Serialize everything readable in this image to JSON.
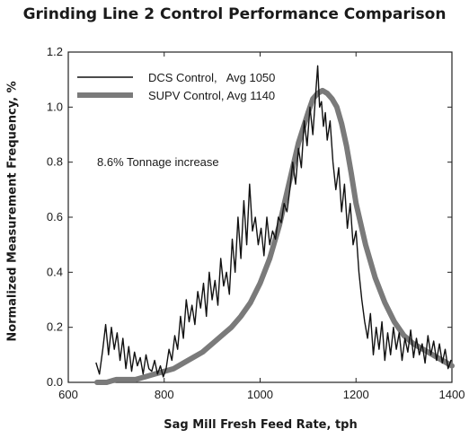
{
  "chart_data": {
    "type": "line",
    "title": "Grinding Line 2 Control Performance Comparison",
    "xlabel": "Sag Mill Fresh Feed Rate, tph",
    "ylabel": "Normalized Measurement Frequency, %",
    "xlim": [
      600,
      1400
    ],
    "ylim": [
      0,
      1.2
    ],
    "x_ticks": [
      "600",
      "800",
      "1000",
      "1200",
      "1400"
    ],
    "y_ticks": [
      "0.0",
      "0.2",
      "0.4",
      "0.6",
      "0.8",
      "1.0",
      "1.2"
    ],
    "grid": false,
    "legend_position": "top-left",
    "annotation": "8.6% Tonnage increase",
    "series": [
      {
        "name": "DCS Control,   Avg 1050",
        "color": "#111111",
        "style": "thin",
        "x": [
          658,
          665,
          672,
          678,
          684,
          690,
          696,
          702,
          708,
          714,
          720,
          726,
          732,
          738,
          744,
          750,
          756,
          762,
          768,
          774,
          780,
          786,
          792,
          798,
          804,
          810,
          816,
          822,
          828,
          834,
          840,
          846,
          852,
          858,
          864,
          870,
          876,
          882,
          888,
          894,
          900,
          906,
          912,
          918,
          924,
          930,
          936,
          942,
          948,
          954,
          960,
          966,
          972,
          978,
          984,
          990,
          996,
          1002,
          1008,
          1014,
          1020,
          1026,
          1032,
          1038,
          1044,
          1050,
          1056,
          1062,
          1068,
          1074,
          1080,
          1086,
          1092,
          1098,
          1104,
          1110,
          1116,
          1120,
          1124,
          1128,
          1132,
          1136,
          1140,
          1146,
          1152,
          1158,
          1164,
          1170,
          1176,
          1182,
          1188,
          1194,
          1200,
          1206,
          1212,
          1218,
          1224,
          1230,
          1236,
          1242,
          1248,
          1254,
          1260,
          1266,
          1272,
          1278,
          1284,
          1290,
          1296,
          1302,
          1308,
          1314,
          1320,
          1326,
          1332,
          1338,
          1344,
          1350,
          1356,
          1362,
          1368,
          1374,
          1380,
          1386,
          1392,
          1398
        ],
        "y": [
          0.07,
          0.03,
          0.12,
          0.21,
          0.1,
          0.2,
          0.12,
          0.18,
          0.08,
          0.16,
          0.05,
          0.13,
          0.04,
          0.11,
          0.06,
          0.09,
          0.03,
          0.1,
          0.05,
          0.04,
          0.08,
          0.03,
          0.06,
          0.02,
          0.05,
          0.12,
          0.08,
          0.17,
          0.12,
          0.24,
          0.16,
          0.3,
          0.22,
          0.28,
          0.21,
          0.33,
          0.27,
          0.36,
          0.24,
          0.4,
          0.3,
          0.37,
          0.28,
          0.45,
          0.35,
          0.4,
          0.32,
          0.52,
          0.4,
          0.6,
          0.45,
          0.66,
          0.5,
          0.72,
          0.55,
          0.6,
          0.5,
          0.56,
          0.46,
          0.6,
          0.5,
          0.55,
          0.52,
          0.6,
          0.58,
          0.65,
          0.62,
          0.7,
          0.8,
          0.72,
          0.85,
          0.78,
          0.95,
          0.86,
          1.0,
          0.9,
          1.05,
          1.15,
          1.0,
          1.02,
          0.93,
          0.98,
          0.88,
          0.95,
          0.8,
          0.7,
          0.78,
          0.62,
          0.72,
          0.56,
          0.65,
          0.5,
          0.55,
          0.4,
          0.3,
          0.22,
          0.16,
          0.25,
          0.1,
          0.2,
          0.12,
          0.22,
          0.08,
          0.18,
          0.1,
          0.2,
          0.12,
          0.18,
          0.08,
          0.16,
          0.11,
          0.19,
          0.09,
          0.16,
          0.1,
          0.14,
          0.07,
          0.17,
          0.1,
          0.15,
          0.08,
          0.14,
          0.07,
          0.12,
          0.05,
          0.08
        ]
      },
      {
        "name": "SUPV Control, Avg 1140",
        "color": "#7a7a7a",
        "style": "thick",
        "x": [
          660,
          680,
          700,
          720,
          740,
          760,
          780,
          800,
          820,
          840,
          860,
          880,
          900,
          920,
          940,
          960,
          980,
          1000,
          1020,
          1040,
          1060,
          1080,
          1100,
          1110,
          1120,
          1130,
          1140,
          1150,
          1160,
          1170,
          1180,
          1190,
          1200,
          1220,
          1240,
          1260,
          1280,
          1300,
          1320,
          1340,
          1360,
          1380,
          1400
        ],
        "y": [
          0.0,
          0.0,
          0.01,
          0.01,
          0.01,
          0.02,
          0.03,
          0.04,
          0.05,
          0.07,
          0.09,
          0.11,
          0.14,
          0.17,
          0.2,
          0.24,
          0.29,
          0.36,
          0.45,
          0.57,
          0.72,
          0.87,
          0.98,
          1.03,
          1.05,
          1.06,
          1.05,
          1.03,
          1.0,
          0.94,
          0.86,
          0.76,
          0.65,
          0.5,
          0.38,
          0.29,
          0.22,
          0.17,
          0.14,
          0.12,
          0.1,
          0.08,
          0.06
        ]
      }
    ]
  }
}
